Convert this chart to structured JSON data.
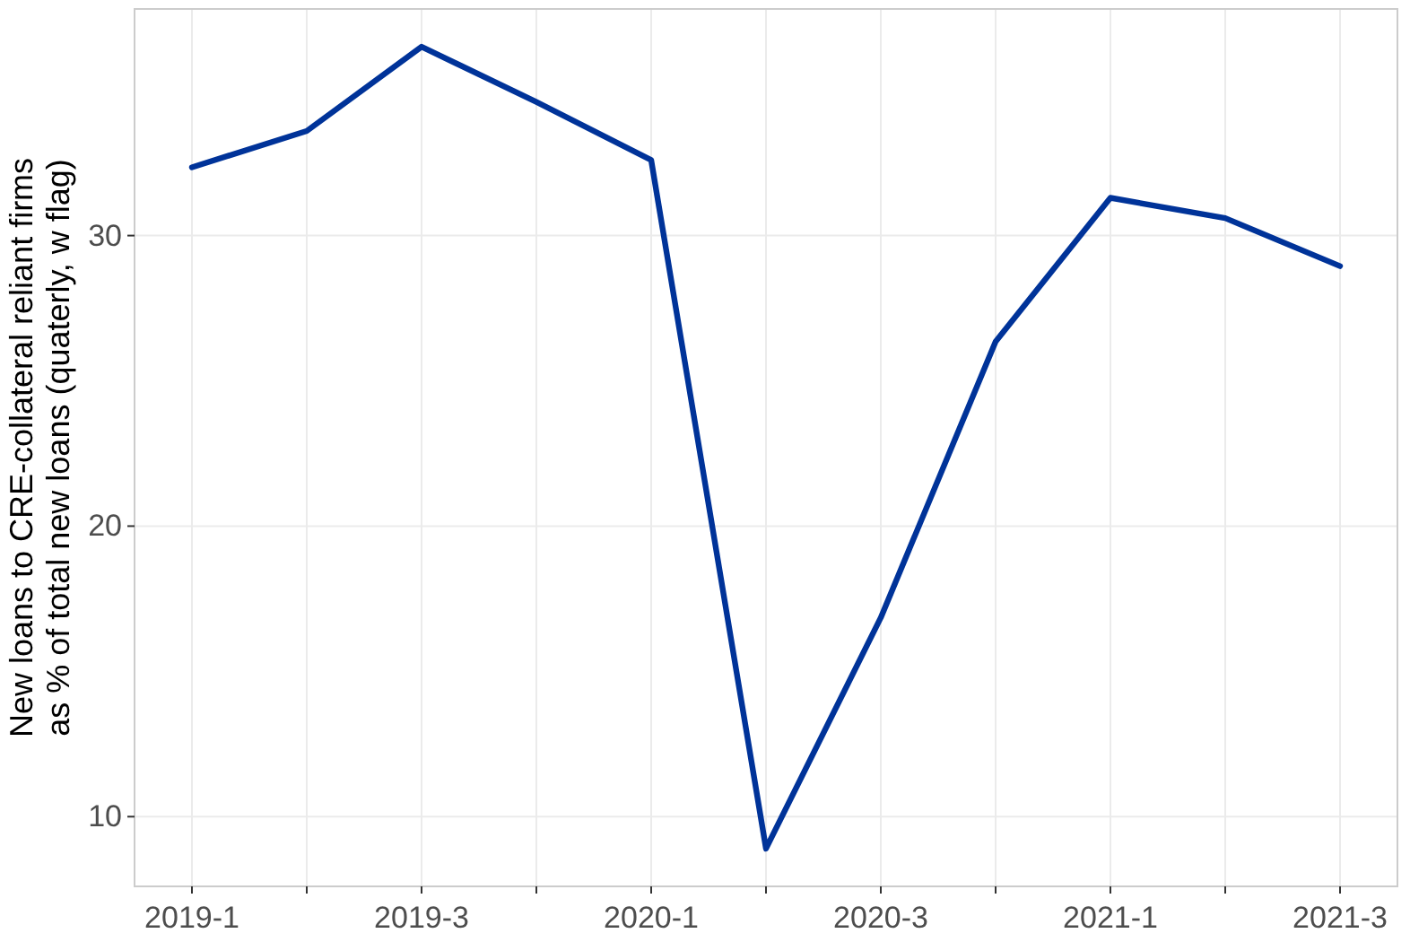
{
  "chart_data": {
    "type": "line",
    "ylabel": "New loans to CRE-collateral reliant firms\nas % of total new loans (quaterly, w flag)",
    "categories": [
      "2019-1",
      null,
      "2019-3",
      null,
      "2020-1",
      null,
      "2020-3",
      null,
      "2021-1",
      null,
      "2021-3"
    ],
    "series": [
      {
        "color": "#003399",
        "values": [
          32.35,
          33.6,
          36.5,
          34.6,
          32.6,
          8.9,
          16.85,
          26.35,
          31.3,
          30.6,
          28.95
        ]
      }
    ],
    "ylim": [
      7.6,
      37.8
    ],
    "yticks": [
      10,
      20,
      30
    ],
    "grid": true,
    "marker": "none",
    "line_style": "solid"
  }
}
